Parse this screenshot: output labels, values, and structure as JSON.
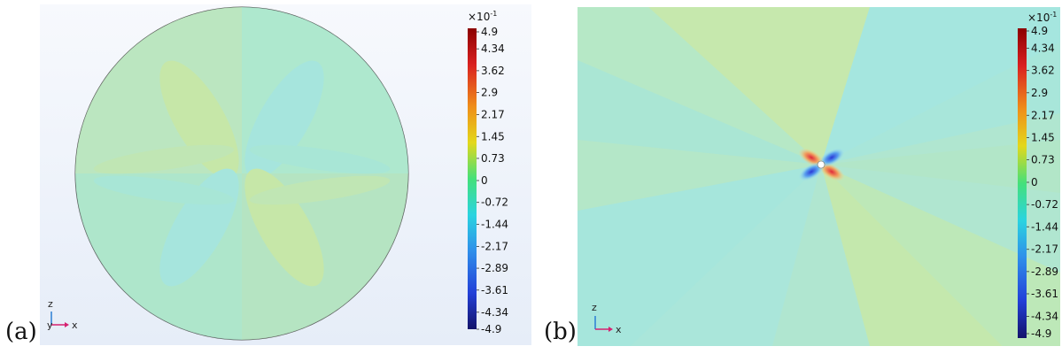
{
  "panels": [
    {
      "label": "(a)",
      "colorbar": {
        "exponent_base": "×10",
        "exponent_power": "-1",
        "ticks": [
          "4.9",
          "4.34",
          "3.62",
          "2.9",
          "2.17",
          "1.45",
          "0.73",
          "0",
          "-0.72",
          "-1.44",
          "-2.17",
          "-2.89",
          "-3.61",
          "-4.34",
          "-4.9"
        ]
      },
      "axes": {
        "vertical": "z",
        "horizontal": "x"
      }
    },
    {
      "label": "(b)",
      "colorbar": {
        "exponent_base": "×10",
        "exponent_power": "-1",
        "ticks": [
          "4.9",
          "4.34",
          "3.62",
          "2.9",
          "2.17",
          "1.45",
          "0.73",
          "0",
          "-0.72",
          "-1.44",
          "-2.17",
          "-2.89",
          "-3.61",
          "-4.34",
          "-4.9"
        ]
      },
      "axes": {
        "vertical": "z",
        "horizontal": "x"
      }
    }
  ],
  "chart_data": [
    {
      "type": "heatmap",
      "colorbar_range": [
        -0.49,
        0.49
      ],
      "colorbar_ticks": [
        4.9,
        4.34,
        3.62,
        2.9,
        2.17,
        1.45,
        0.73,
        0,
        -0.72,
        -1.44,
        -2.17,
        -2.89,
        -3.61,
        -4.34,
        -4.9
      ],
      "colorbar_multiplier": 0.1
    },
    {
      "type": "heatmap",
      "colorbar_range": [
        -0.49,
        0.49
      ],
      "colorbar_ticks": [
        4.9,
        4.34,
        3.62,
        2.9,
        2.17,
        1.45,
        0.73,
        0,
        -0.72,
        -1.44,
        -2.17,
        -2.89,
        -3.61,
        -4.34,
        -4.9
      ],
      "colorbar_multiplier": 0.1
    }
  ]
}
